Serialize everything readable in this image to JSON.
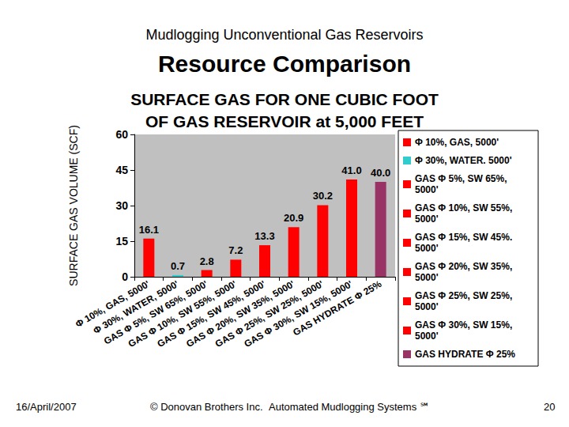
{
  "slide": {
    "header": "Mudlogging Unconventional Gas Reservoirs",
    "heading": "Resource Comparison",
    "footer": [
      "16/April/2007",
      "© Donovan Brothers Inc.",
      "Automated Mudlogging Systems ℠",
      "20"
    ]
  },
  "chart_data": {
    "type": "bar",
    "title": "SURFACE GAS FOR ONE CUBIC FOOT\nOF GAS RESERVOIR at 5,000 FEET",
    "y_label": "SURFACE GAS VOLUME (SCF)",
    "categories": [
      "Φ 10%, GAS, 5000'",
      "Φ 30%, WATER, 5000'",
      "GAS Φ 5%, SW 65%, 5000'",
      "GAS Φ 10%, SW 55%, 5000'",
      "GAS Φ 15%, SW 45%, 5000'",
      "GAS Φ 20%, SW 35%, 5000'",
      "GAS Φ 25%, SW 25%, 5000'",
      "GAS Φ 30%, SW 15%, 5000'",
      "GAS HYDRATE Φ 25%"
    ],
    "series": [
      {
        "name": "Φ 10%, GAS, 5000'",
        "color": "#ff0000",
        "values": [
          16.1,
          null,
          null,
          null,
          null,
          null,
          null,
          null,
          null
        ],
        "value_labels": [
          "16.1",
          null,
          null,
          null,
          null,
          null,
          null,
          null,
          null
        ]
      },
      {
        "name": "Φ 30%, WATER. 5000'",
        "color": "#33cccc",
        "values": [
          null,
          0.7,
          null,
          null,
          null,
          null,
          null,
          null,
          null
        ],
        "value_labels": [
          null,
          "0.7",
          null,
          null,
          null,
          null,
          null,
          null,
          null
        ]
      },
      {
        "name": "GAS Φ 5%, SW 65%, 5000'",
        "color": "#ff0000",
        "values": [
          null,
          null,
          2.8,
          null,
          null,
          null,
          null,
          null,
          null
        ],
        "value_labels": [
          null,
          null,
          "2.8",
          null,
          null,
          null,
          null,
          null,
          null
        ]
      },
      {
        "name": "GAS Φ 10%, SW 55%, 5000'",
        "color": "#ff0000",
        "values": [
          null,
          null,
          null,
          7.2,
          null,
          null,
          null,
          null,
          null
        ],
        "value_labels": [
          null,
          null,
          null,
          "7.2",
          null,
          null,
          null,
          null,
          null
        ]
      },
      {
        "name": "GAS Φ 15%, SW 45%. 5000'",
        "color": "#ff0000",
        "values": [
          null,
          null,
          null,
          null,
          13.3,
          null,
          null,
          null,
          null
        ],
        "value_labels": [
          null,
          null,
          null,
          null,
          "13.3",
          null,
          null,
          null,
          null
        ]
      },
      {
        "name": "GAS Φ 20%, SW 35%, 5000'",
        "color": "#ff0000",
        "values": [
          null,
          null,
          null,
          null,
          null,
          20.9,
          null,
          null,
          null
        ],
        "value_labels": [
          null,
          null,
          null,
          null,
          null,
          "20.9",
          null,
          null,
          null
        ]
      },
      {
        "name": "GAS Φ 25%, SW 25%, 5000'",
        "color": "#ff0000",
        "values": [
          null,
          null,
          null,
          null,
          null,
          null,
          30.2,
          null,
          null
        ],
        "value_labels": [
          null,
          null,
          null,
          null,
          null,
          null,
          "30.2",
          null,
          null
        ]
      },
      {
        "name": "GAS Φ 30%, SW 15%, 5000'",
        "color": "#ff0000",
        "values": [
          null,
          null,
          null,
          null,
          null,
          null,
          null,
          41.0,
          null
        ],
        "value_labels": [
          null,
          null,
          null,
          null,
          null,
          null,
          null,
          "41.0",
          null
        ]
      },
      {
        "name": "GAS HYDRATE Φ 25%",
        "color": "#993366",
        "values": [
          null,
          null,
          null,
          null,
          null,
          null,
          null,
          null,
          40.0
        ],
        "value_labels": [
          null,
          null,
          null,
          null,
          null,
          null,
          null,
          null,
          "40.0"
        ]
      }
    ],
    "ylim": [
      0,
      60
    ],
    "yticks": [
      0,
      15,
      30,
      45,
      60
    ],
    "grid": false,
    "legend": "right",
    "data_labels": true
  }
}
